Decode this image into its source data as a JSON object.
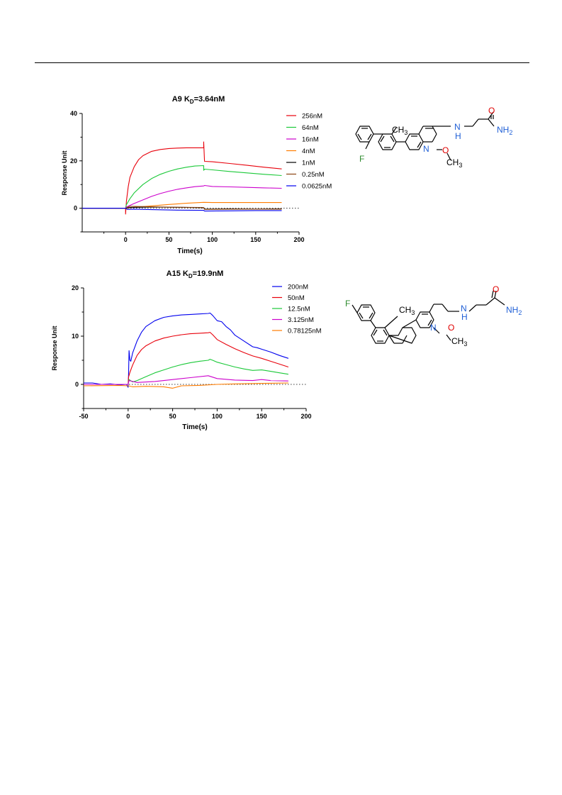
{
  "chart_data": [
    {
      "type": "line",
      "title_main": "A9 K",
      "title_sub": "D",
      "title_rest": "=3.64nM",
      "xlabel": "Time(s)",
      "ylabel": "Response Unit",
      "xlim": [
        -50,
        200
      ],
      "ylim": [
        -10,
        40
      ],
      "xticks": [
        "0",
        "50",
        "100",
        "150",
        "200"
      ],
      "yticks": [
        "40",
        "20",
        "0"
      ],
      "legend_position": "right",
      "zero_line": true,
      "series": [
        {
          "name": "256nM",
          "color": "#e8000b",
          "x": [
            -50,
            -5,
            0,
            0,
            1,
            3,
            5,
            10,
            15,
            20,
            30,
            40,
            50,
            60,
            70,
            80,
            90,
            90,
            91,
            100,
            120,
            140,
            160,
            180
          ],
          "y": [
            0,
            0,
            0,
            -2.5,
            3,
            9,
            13,
            17.5,
            20.5,
            22.2,
            24,
            24.8,
            25.2,
            25.4,
            25.5,
            25.5,
            25.5,
            28,
            19.8,
            19.6,
            18.9,
            18.1,
            17.3,
            16.6
          ]
        },
        {
          "name": "64nM",
          "color": "#1ac938",
          "x": [
            -50,
            -5,
            0,
            1,
            5,
            10,
            20,
            30,
            40,
            50,
            60,
            70,
            80,
            90,
            90,
            91,
            100,
            120,
            140,
            160,
            180
          ],
          "y": [
            0,
            0,
            0,
            1.5,
            4,
            6.5,
            10,
            12.5,
            14.3,
            15.6,
            16.6,
            17.3,
            17.8,
            18,
            16,
            16.5,
            16.2,
            15.5,
            14.9,
            14.3,
            13.8
          ]
        },
        {
          "name": "16nM",
          "color": "#cc00cc",
          "x": [
            -50,
            -5,
            0,
            1,
            10,
            20,
            30,
            40,
            50,
            60,
            70,
            80,
            90,
            91,
            100,
            120,
            140,
            160,
            180
          ],
          "y": [
            0,
            0,
            0,
            0.5,
            2,
            3.5,
            5,
            6.2,
            7.2,
            8,
            8.6,
            9.1,
            9.4,
            9.6,
            9.2,
            9,
            8.8,
            8.6,
            8.4
          ]
        },
        {
          "name": "4nM",
          "color": "#ff7c00",
          "x": [
            -50,
            -5,
            0,
            10,
            30,
            50,
            70,
            90,
            100,
            140,
            180
          ],
          "y": [
            0,
            0,
            0,
            0.4,
            1,
            1.6,
            2.1,
            2.5,
            2.4,
            2.4,
            2.4
          ]
        },
        {
          "name": "1nM",
          "color": "#000000",
          "x": [
            -50,
            -5,
            0,
            5,
            30,
            60,
            90,
            91,
            120,
            150,
            180
          ],
          "y": [
            0,
            0,
            0,
            0.3,
            0.5,
            0.4,
            0.2,
            -0.4,
            -0.3,
            -0.4,
            -0.3
          ]
        },
        {
          "name": "0.25nM",
          "color": "#8b4513",
          "x": [
            -50,
            -5,
            0,
            5,
            30,
            60,
            90,
            91,
            120,
            150,
            180
          ],
          "y": [
            0,
            0,
            0,
            0.8,
            0.6,
            0.4,
            0.3,
            -0.5,
            -0.4,
            -0.4,
            -0.4
          ]
        },
        {
          "name": "0.0625nM",
          "color": "#0000ee",
          "x": [
            -50,
            -5,
            0,
            2,
            10,
            30,
            60,
            90,
            91,
            120,
            150,
            180
          ],
          "y": [
            0,
            0,
            0,
            -0.5,
            -0.4,
            -0.6,
            -0.8,
            -0.9,
            -1.2,
            -1.1,
            -1,
            -1
          ]
        }
      ]
    },
    {
      "type": "line",
      "title_main": "A15 K",
      "title_sub": "D",
      "title_rest": "=19.9nM",
      "xlabel": "Time(s)",
      "ylabel": "Response Unit",
      "xlim": [
        -50,
        200
      ],
      "ylim": [
        -5,
        20
      ],
      "xticks": [
        "-50",
        "0",
        "50",
        "100",
        "150",
        "200"
      ],
      "yticks": [
        "20",
        "10",
        "0"
      ],
      "legend_position": "right",
      "zero_line": true,
      "series": [
        {
          "name": "200nM",
          "color": "#0000ee",
          "x": [
            -50,
            -40,
            -30,
            -20,
            -10,
            -2,
            0,
            0.5,
            1,
            2,
            3,
            5,
            10,
            15,
            20,
            30,
            40,
            50,
            60,
            70,
            80,
            90,
            92,
            95,
            100,
            105,
            110,
            115,
            120,
            130,
            140,
            145,
            150,
            160,
            170,
            180
          ],
          "y": [
            0.3,
            0.3,
            0,
            0.1,
            -0.1,
            0,
            -0.6,
            2,
            7,
            5,
            4.8,
            6.5,
            9,
            10.8,
            12,
            13.2,
            13.9,
            14.2,
            14.4,
            14.5,
            14.6,
            14.7,
            14.8,
            14.3,
            13.2,
            13,
            12,
            11.3,
            10.2,
            9,
            7.8,
            7.6,
            7.3,
            6.7,
            6,
            5.4
          ]
        },
        {
          "name": "50nM",
          "color": "#e8000b",
          "x": [
            -50,
            -10,
            0,
            0.5,
            2,
            5,
            10,
            15,
            20,
            30,
            40,
            50,
            60,
            70,
            80,
            90,
            92,
            95,
            100,
            110,
            120,
            130,
            140,
            150,
            160,
            170,
            180
          ],
          "y": [
            0,
            0,
            0,
            1.5,
            2.5,
            4,
            6,
            7.2,
            8,
            9,
            9.6,
            10,
            10.3,
            10.5,
            10.6,
            10.7,
            10.8,
            10.3,
            9.3,
            8.3,
            7.4,
            6.6,
            5.9,
            5.4,
            4.8,
            4.2,
            3.6
          ]
        },
        {
          "name": "12.5nM",
          "color": "#1ac938",
          "x": [
            -50,
            -10,
            0,
            1,
            5,
            10,
            20,
            30,
            40,
            50,
            60,
            70,
            80,
            90,
            92,
            95,
            100,
            110,
            120,
            130,
            140,
            150,
            160,
            170,
            180
          ],
          "y": [
            0,
            0,
            0,
            1,
            0.5,
            0.8,
            1.6,
            2.4,
            3,
            3.6,
            4.1,
            4.5,
            4.8,
            5,
            5.2,
            5,
            4.6,
            4.1,
            3.6,
            3.2,
            2.9,
            3,
            2.7,
            2.4,
            2.1
          ]
        },
        {
          "name": "3.125nM",
          "color": "#cc00cc",
          "x": [
            -50,
            -10,
            0,
            1,
            10,
            30,
            50,
            70,
            90,
            95,
            100,
            120,
            140,
            150,
            160,
            180
          ],
          "y": [
            0,
            0,
            0,
            0.8,
            0.4,
            0.6,
            1,
            1.4,
            1.8,
            1.5,
            1.2,
            0.9,
            0.8,
            1,
            0.8,
            0.7
          ]
        },
        {
          "name": "0.78125nM",
          "color": "#ff7c00",
          "x": [
            -50,
            -10,
            0,
            5,
            20,
            40,
            50,
            60,
            80,
            100,
            120,
            150,
            180
          ],
          "y": [
            -0.3,
            -0.2,
            -0.3,
            -0.5,
            -0.4,
            -0.5,
            -0.8,
            -0.3,
            -0.2,
            0,
            0.1,
            0.2,
            0.3
          ]
        }
      ]
    }
  ],
  "structures": [
    {
      "labels": {
        "ch3": "CH",
        "ch3_sub": "3",
        "f": "F",
        "n": "N",
        "nh": "N",
        "h": "H",
        "o_amide": "O",
        "nh2": "NH",
        "nh2_sub": "2",
        "o_ether": "O",
        "ch3_ether": "CH",
        "ch3_ether_sub": "3"
      },
      "colors": {
        "fluorine": "#2e8b2e",
        "nitrogen": "#1f5fd6",
        "oxygen": "#e00000",
        "carbon": "#000000"
      }
    },
    {
      "labels": {
        "ch3": "CH",
        "ch3_sub": "3",
        "f": "F",
        "n": "N",
        "nh": "N",
        "h": "H",
        "o_amide": "O",
        "nh2": "NH",
        "nh2_sub": "2",
        "o_ether": "O",
        "ch3_ether": "CH",
        "ch3_ether_sub": "3"
      },
      "colors": {
        "fluorine": "#2e8b2e",
        "nitrogen": "#1f5fd6",
        "oxygen": "#e00000",
        "carbon": "#000000"
      }
    }
  ]
}
